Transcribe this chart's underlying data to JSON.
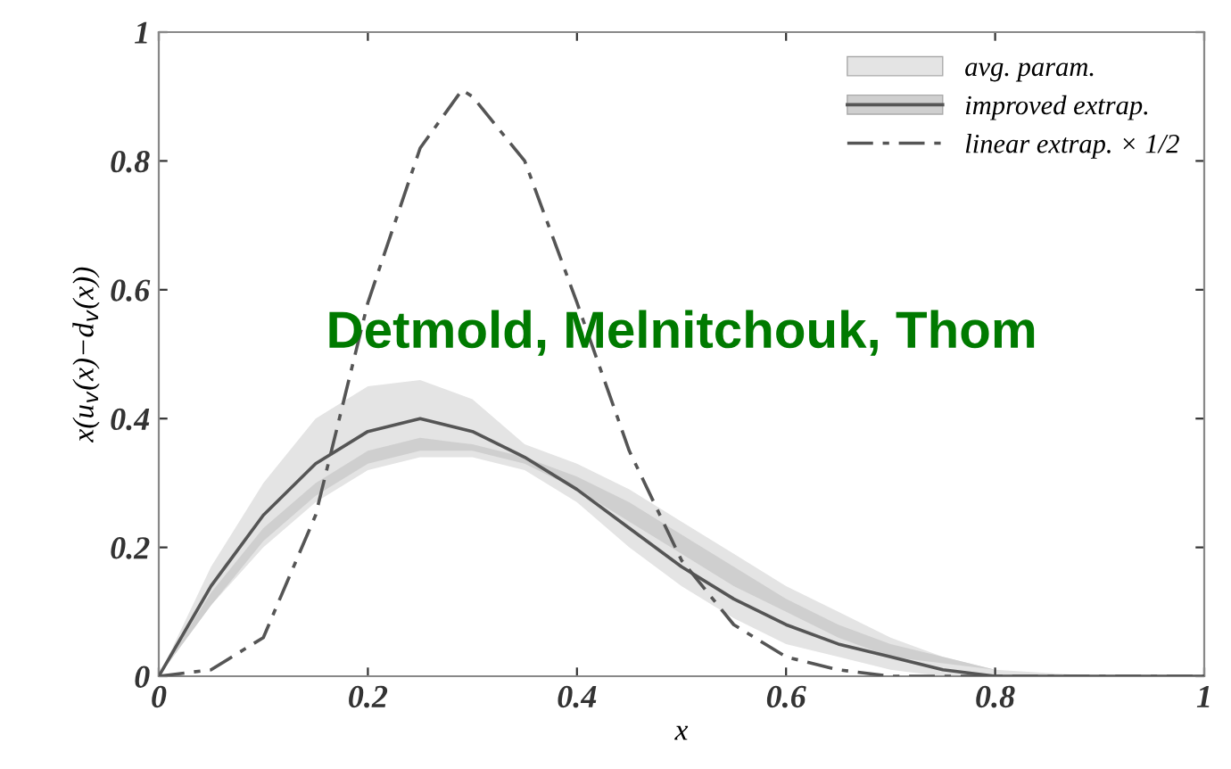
{
  "chart_data": {
    "type": "line",
    "xlabel": "x",
    "ylabel": "x(u$_{v}$(x)−d$_{v}$(x))",
    "x": [
      0,
      0.05,
      0.1,
      0.15,
      0.2,
      0.25,
      0.3,
      0.35,
      0.4,
      0.45,
      0.5,
      0.55,
      0.6,
      0.65,
      0.7,
      0.75,
      0.8,
      0.9,
      1
    ],
    "series": [
      {
        "name": "avg. param.",
        "type": "area",
        "color": "#e4e4e4",
        "values": [
          null,
          null,
          null,
          null,
          null,
          null,
          null,
          null,
          null,
          null,
          null,
          null,
          null,
          null,
          null,
          null,
          null,
          null,
          null
        ],
        "upper": [
          0,
          0.17,
          0.3,
          0.4,
          0.45,
          0.46,
          0.43,
          0.36,
          0.33,
          0.29,
          0.24,
          0.19,
          0.14,
          0.1,
          0.06,
          0.03,
          0.01,
          0,
          0
        ],
        "lower": [
          0,
          0.11,
          0.2,
          0.27,
          0.32,
          0.34,
          0.34,
          0.32,
          0.27,
          0.2,
          0.14,
          0.09,
          0.05,
          0.03,
          0.01,
          0,
          0,
          0,
          0
        ]
      },
      {
        "name": "improved extrap.",
        "color": "#555555",
        "line_style": "solid",
        "values": [
          0,
          0.14,
          0.25,
          0.33,
          0.38,
          0.4,
          0.38,
          0.34,
          0.29,
          0.23,
          0.17,
          0.12,
          0.08,
          0.05,
          0.03,
          0.01,
          0,
          0,
          0
        ],
        "lower": [
          0,
          0.11,
          0.21,
          0.28,
          0.33,
          0.35,
          0.35,
          0.33,
          0.29,
          0.24,
          0.19,
          0.14,
          0.1,
          0.06,
          0.03,
          0.02,
          0.01,
          0,
          0
        ],
        "upper": [
          0,
          0.13,
          0.23,
          0.3,
          0.35,
          0.37,
          0.36,
          0.34,
          0.31,
          0.27,
          0.22,
          0.17,
          0.12,
          0.08,
          0.05,
          0.03,
          0.01,
          0,
          0
        ]
      },
      {
        "name": "linear extrap. × 1/2",
        "type": "line",
        "color": "#555555",
        "line_style": "dashed",
        "x": [
          0,
          0.05,
          0.1,
          0.15,
          0.2,
          0.25,
          0.29,
          0.3,
          0.35,
          0.4,
          0.45,
          0.5,
          0.55,
          0.6,
          0.65,
          0.7,
          0.75,
          1
        ],
        "values": [
          0,
          0.01,
          0.06,
          0.25,
          0.58,
          0.82,
          0.91,
          0.9,
          0.8,
          0.58,
          0.35,
          0.18,
          0.08,
          0.03,
          0.01,
          0,
          0,
          0
        ]
      }
    ],
    "xlim": [
      0,
      1
    ],
    "ylim": [
      0,
      1
    ],
    "xticks": [
      0,
      0.2,
      0.4,
      0.6,
      0.8,
      1
    ],
    "yticks": [
      0,
      0.2,
      0.4,
      0.6,
      0.8,
      1
    ],
    "grid": false,
    "legend": "top right",
    "marker": "none",
    "annotations": [
      "Detmold, Melnitchouk, Thom"
    ]
  }
}
